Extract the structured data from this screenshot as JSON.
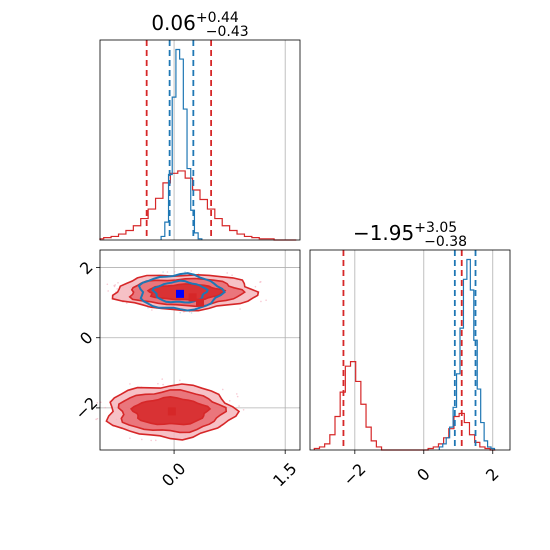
{
  "chart_data": [
    {
      "type": "histogram",
      "panel": "marginal-param-1",
      "title": {
        "main": "0.06",
        "sup": "+0.44",
        "sub": "−0.43"
      },
      "xlim": [
        -1.0,
        1.7
      ],
      "grid": true,
      "series": [
        {
          "color": "#d62728",
          "x": [
            -1.0,
            -0.9,
            -0.8,
            -0.7,
            -0.6,
            -0.5,
            -0.4,
            -0.3,
            -0.2,
            -0.1,
            0.0,
            0.1,
            0.2,
            0.3,
            0.4,
            0.5,
            0.6,
            0.7,
            0.8,
            0.9,
            1.0,
            1.1,
            1.2,
            1.3,
            1.4,
            1.5,
            1.6
          ],
          "counts": [
            1,
            2,
            3,
            5,
            8,
            12,
            18,
            26,
            35,
            48,
            56,
            58,
            52,
            42,
            34,
            26,
            18,
            12,
            8,
            5,
            3,
            2,
            1,
            1,
            0,
            0,
            0
          ]
        },
        {
          "color": "#1f77b4",
          "x": [
            -0.15,
            -0.1,
            -0.05,
            0.0,
            0.05,
            0.1,
            0.15,
            0.2,
            0.25,
            0.3,
            0.35
          ],
          "counts": [
            3,
            15,
            55,
            120,
            160,
            152,
            110,
            60,
            25,
            6,
            1
          ]
        }
      ],
      "quantile_lines": [
        {
          "color": "#d62728",
          "x": [
            -0.37,
            0.5
          ]
        },
        {
          "color": "#1f77b4",
          "x": [
            -0.06,
            0.26
          ]
        }
      ]
    },
    {
      "type": "contour",
      "panel": "joint",
      "xlim": [
        -1.0,
        1.7
      ],
      "ylim": [
        -3.2,
        2.5
      ],
      "xticks": [
        "0.0",
        "1.5"
      ],
      "yticks": [
        "2",
        "0",
        "−2"
      ],
      "xtick_values": [
        0.0,
        1.5
      ],
      "ytick_values": [
        2,
        0,
        -2
      ],
      "grid": true,
      "blobs": [
        {
          "color": "#d62728",
          "cx": 0.15,
          "cy": 1.3,
          "rx": [
            0.95,
            0.75,
            0.5
          ],
          "ry": [
            0.5,
            0.38,
            0.22
          ]
        },
        {
          "color": "#d62728",
          "cx": -0.05,
          "cy": -2.1,
          "rx": [
            0.85,
            0.7,
            0.5
          ],
          "ry": [
            0.75,
            0.58,
            0.38
          ]
        },
        {
          "color": "#1f77b4",
          "cx": 0.08,
          "cy": 1.3,
          "rx": [
            0.55,
            0.35
          ],
          "ry": [
            0.5,
            0.3
          ]
        }
      ],
      "markers": [
        {
          "color": "#0000ff",
          "x": 0.08,
          "y": 1.25
        },
        {
          "color": "#d62728",
          "x": 0.25,
          "y": 1.15
        },
        {
          "color": "#d62728",
          "x": 0.35,
          "y": 1.0
        },
        {
          "color": "#d62728",
          "x": -0.03,
          "y": -2.1
        }
      ]
    },
    {
      "type": "histogram",
      "panel": "marginal-param-2",
      "title": {
        "main": "−1.95",
        "sup": "+3.05",
        "sub": "−0.38"
      },
      "xlim": [
        -3.3,
        2.5
      ],
      "xticks": [
        "−2",
        "0",
        "2"
      ],
      "xtick_values": [
        -2,
        0,
        2
      ],
      "grid": true,
      "series": [
        {
          "color": "#d62728",
          "x": [
            -3.1,
            -2.95,
            -2.8,
            -2.65,
            -2.5,
            -2.35,
            -2.2,
            -2.05,
            -1.9,
            -1.75,
            -1.6,
            -1.45,
            -1.3,
            -1.15,
            -1.0,
            -0.85,
            -0.7,
            -0.55,
            -0.4,
            -0.25,
            -0.1,
            0.05,
            0.2,
            0.35,
            0.5,
            0.65,
            0.8,
            0.95,
            1.1,
            1.25,
            1.4,
            1.55,
            1.7,
            1.85,
            2.0
          ],
          "counts": [
            1,
            2,
            4,
            10,
            22,
            38,
            55,
            58,
            45,
            30,
            15,
            6,
            2,
            0,
            0,
            0,
            0,
            0,
            0,
            0,
            0,
            0,
            1,
            2,
            4,
            8,
            14,
            22,
            24,
            18,
            10,
            5,
            2,
            1,
            0
          ]
        },
        {
          "color": "#1f77b4",
          "x": [
            0.5,
            0.6,
            0.7,
            0.8,
            0.9,
            1.0,
            1.1,
            1.2,
            1.3,
            1.4,
            1.5,
            1.6,
            1.7,
            1.8,
            1.9,
            2.0
          ],
          "counts": [
            2,
            4,
            8,
            15,
            28,
            50,
            80,
            112,
            125,
            105,
            72,
            40,
            18,
            6,
            2,
            1
          ]
        }
      ],
      "quantile_lines": [
        {
          "color": "#d62728",
          "x": [
            -2.33,
            1.1
          ]
        },
        {
          "color": "#1f77b4",
          "x": [
            0.9,
            1.5
          ]
        }
      ]
    }
  ]
}
